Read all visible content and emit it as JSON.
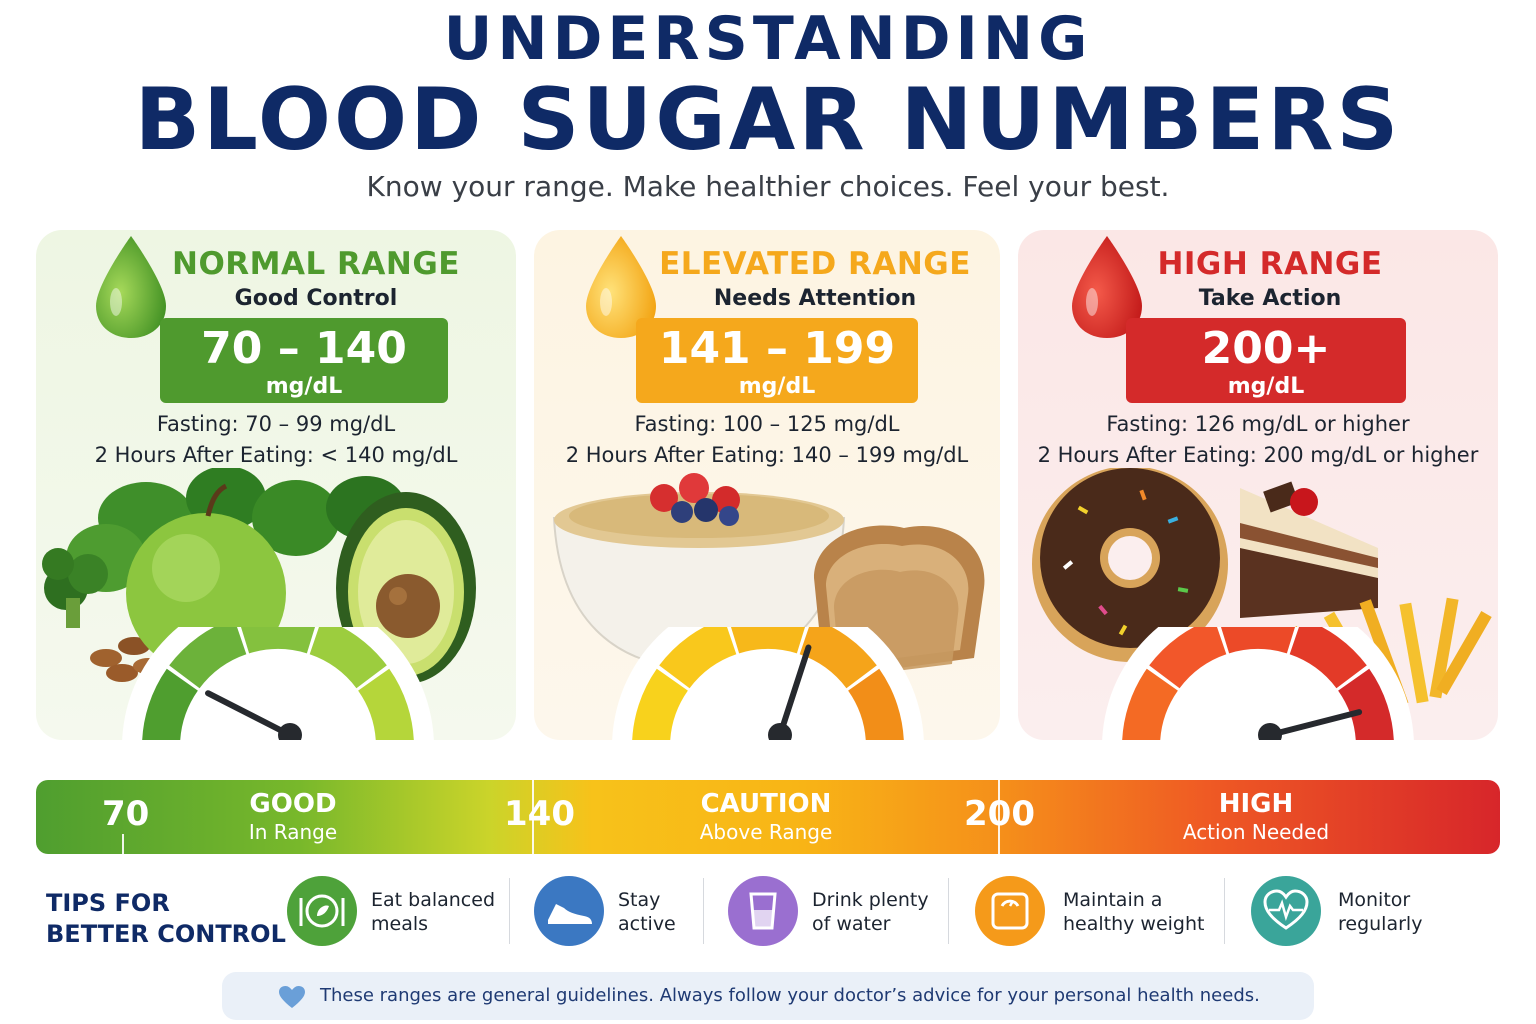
{
  "header": {
    "title_top": "UNDERSTANDING",
    "title_main": "BLOOD SUGAR NUMBERS",
    "subtitle": "Know your range.  Make healthier choices.  Feel your best."
  },
  "colors": {
    "navy": "#0f2a66",
    "green": "#4f9a2e",
    "amber": "#f5a81c",
    "red": "#d42a2a"
  },
  "panels": [
    {
      "title": "NORMAL RANGE",
      "subtitle": "Good Control",
      "range": "70 – 140",
      "unit": "mg/dL",
      "fasting": "Fasting: 70 – 99 mg/dL",
      "after": "2 Hours After Eating: < 140 mg/dL",
      "icon": "green-drop-icon",
      "color": "#4f9a2e",
      "gauge_level": 0.15
    },
    {
      "title": "ELEVATED RANGE",
      "subtitle": "Needs Attention",
      "range": "141 – 199",
      "unit": "mg/dL",
      "fasting": "Fasting: 100 – 125 mg/dL",
      "after": "2 Hours After Eating: 140 – 199 mg/dL",
      "icon": "yellow-drop-icon",
      "color": "#f5a81c",
      "gauge_level": 0.6
    },
    {
      "title": "HIGH RANGE",
      "subtitle": "Take Action",
      "range": "200+",
      "unit": "mg/dL",
      "fasting": "Fasting: 126 mg/dL or higher",
      "after": "2 Hours After Eating: 200 mg/dL or higher",
      "icon": "red-drop-icon",
      "color": "#d42a2a",
      "gauge_level": 0.92
    }
  ],
  "scale": {
    "marks": [
      "70",
      "140",
      "200"
    ],
    "zones": [
      {
        "label": "GOOD",
        "sub": "In Range"
      },
      {
        "label": "CAUTION",
        "sub": "Above Range"
      },
      {
        "label": "HIGH",
        "sub": "Action Needed"
      }
    ]
  },
  "tips": {
    "title_line1": "TIPS FOR",
    "title_line2": "BETTER CONTROL",
    "items": [
      {
        "line1": "Eat balanced",
        "line2": "meals",
        "icon": "plate-icon",
        "color": "#4ea23a"
      },
      {
        "line1": "Stay",
        "line2": "active",
        "icon": "sneaker-icon",
        "color": "#3b78c2"
      },
      {
        "line1": "Drink plenty",
        "line2": "of water",
        "icon": "water-glass-icon",
        "color": "#9a6fd0"
      },
      {
        "line1": "Maintain a",
        "line2": "healthy weight",
        "icon": "scale-icon",
        "color": "#f59a1a"
      },
      {
        "line1": "Monitor",
        "line2": "regularly",
        "icon": "heart-pulse-icon",
        "color": "#3aa59a"
      }
    ]
  },
  "note": {
    "text": "These ranges are general guidelines. Always follow your doctor’s advice for your personal health needs.",
    "icon": "heart-icon"
  }
}
